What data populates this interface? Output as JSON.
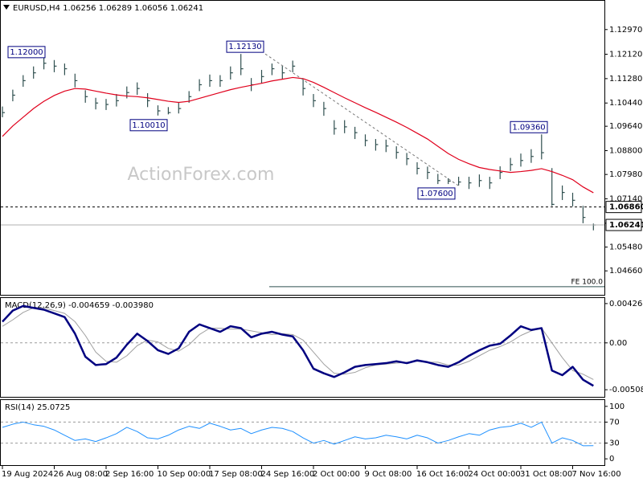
{
  "chart_data": [
    {
      "type": "ohlc",
      "title": "EURUSD,H4  1.06256 1.06289 1.06056 1.06241",
      "watermark": "ActionForex.com",
      "categories": [
        "19 Aug 2024",
        null,
        null,
        null,
        null,
        "26 Aug 08:00",
        null,
        null,
        null,
        null,
        "2 Sep 16:00",
        null,
        null,
        null,
        null,
        "10 Sep 00:00",
        null,
        null,
        null,
        null,
        "17 Sep 08:00",
        null,
        null,
        null,
        null,
        "24 Sep 16:00",
        null,
        null,
        null,
        null,
        "2 Oct 00:00",
        null,
        null,
        null,
        null,
        "9 Oct 08:00",
        null,
        null,
        null,
        null,
        "16 Oct 16:00",
        null,
        null,
        null,
        null,
        "24 Oct 00:00",
        null,
        null,
        null,
        null,
        "31 Oct 08:00",
        null,
        null,
        null,
        null,
        "7 Nov 16:00",
        null,
        null
      ],
      "high": [
        1.1032,
        1.109,
        1.114,
        1.117,
        1.12,
        1.1192,
        1.118,
        1.1145,
        1.1088,
        1.1062,
        1.1058,
        1.1075,
        1.1101,
        1.1115,
        1.1078,
        1.1036,
        1.103,
        1.1046,
        1.1085,
        1.1126,
        1.1142,
        1.114,
        1.117,
        1.1213,
        1.113,
        1.1158,
        1.118,
        1.1172,
        1.119,
        1.1125,
        1.1075,
        1.1048,
        1.0985,
        1.0985,
        1.0962,
        1.0936,
        1.092,
        1.0918,
        1.0895,
        1.0872,
        1.084,
        1.0825,
        1.08,
        1.0785,
        1.079,
        1.079,
        1.0798,
        1.079,
        1.0826,
        1.0855,
        1.087,
        1.0885,
        1.0936,
        1.082,
        1.076,
        1.0735,
        1.069,
        1.06289
      ],
      "low": [
        1.0995,
        1.105,
        1.11,
        1.1128,
        1.116,
        1.115,
        1.114,
        1.1098,
        1.1045,
        1.1022,
        1.102,
        1.1032,
        1.106,
        1.1072,
        1.103,
        1.1001,
        1.1005,
        1.1008,
        1.1045,
        1.1085,
        1.11,
        1.11,
        1.1125,
        1.114,
        1.1085,
        1.1112,
        1.114,
        1.1125,
        1.115,
        1.107,
        1.103,
        1.1,
        1.0935,
        1.094,
        1.092,
        1.0895,
        1.088,
        1.0875,
        1.0852,
        1.083,
        1.0798,
        1.0782,
        1.0765,
        1.0765,
        1.076,
        1.0748,
        1.0755,
        1.0748,
        1.0782,
        1.081,
        1.0825,
        1.0838,
        1.085,
        1.069,
        1.071,
        1.0688,
        1.063,
        1.06056
      ],
      "close": [
        1.1011,
        1.1071,
        1.1121,
        1.1148,
        1.1181,
        1.1171,
        1.1162,
        1.1121,
        1.1066,
        1.1044,
        1.1039,
        1.1052,
        1.108,
        1.1094,
        1.1052,
        1.1017,
        1.1011,
        1.1025,
        1.1066,
        1.1107,
        1.1121,
        1.1121,
        1.1148,
        1.1162,
        1.1107,
        1.1135,
        1.1162,
        1.1148,
        1.1171,
        1.1094,
        1.1052,
        1.1025,
        1.0956,
        1.0962,
        1.0942,
        1.0915,
        1.0901,
        1.0896,
        1.0874,
        1.0852,
        1.0819,
        1.0805,
        1.0777,
        1.0775,
        1.0772,
        1.0769,
        1.0777,
        1.0769,
        1.0805,
        1.0832,
        1.0846,
        1.086,
        1.0873,
        1.0695,
        1.0736,
        1.0709,
        1.065,
        1.06241
      ],
      "color": "#2f4f4f",
      "ma": {
        "color": "#e0001c",
        "values": [
          1.0929,
          1.0965,
          1.0995,
          1.1025,
          1.105,
          1.107,
          1.1085,
          1.1094,
          1.1092,
          1.1085,
          1.1078,
          1.1072,
          1.1068,
          1.1066,
          1.1062,
          1.1056,
          1.105,
          1.1046,
          1.105,
          1.106,
          1.107,
          1.108,
          1.109,
          1.1098,
          1.1105,
          1.1112,
          1.112,
          1.1126,
          1.1132,
          1.1128,
          1.1115,
          1.1098,
          1.108,
          1.1062,
          1.1045,
          1.1028,
          1.1012,
          1.0995,
          1.0978,
          1.096,
          1.094,
          1.092,
          1.0895,
          1.087,
          1.085,
          1.0835,
          1.0822,
          1.0815,
          1.081,
          1.0805,
          1.0808,
          1.0812,
          1.0818,
          1.0808,
          1.0795,
          1.078,
          1.0755,
          1.0735
        ]
      },
      "annotations": [
        {
          "value": 1.12,
          "label": "1.12000"
        },
        {
          "value": 1.1213,
          "label": "1.12130"
        },
        {
          "value": 1.1001,
          "label": "1.10010"
        },
        {
          "value": 1.076,
          "label": "1.07600"
        },
        {
          "value": 1.0936,
          "label": "1.09360"
        }
      ],
      "levels": [
        {
          "value": 1.0686,
          "label": "1.06860",
          "style": "dashed"
        },
        {
          "value": 1.06241,
          "label": "1.06241",
          "style": "solid"
        }
      ],
      "fe_level": {
        "value": 1.04115,
        "label": "FE 100.0"
      },
      "ylim": [
        1.03835,
        1.1396
      ],
      "yticks": [
        {
          "value": 1.1297,
          "label": "1.12970"
        },
        {
          "value": 1.1212,
          "label": "1.12120"
        },
        {
          "value": 1.1128,
          "label": "1.11280"
        },
        {
          "value": 1.1044,
          "label": "1.10440"
        },
        {
          "value": 1.0964,
          "label": "1.09640"
        },
        {
          "value": 1.088,
          "label": "1.08800"
        },
        {
          "value": 1.0798,
          "label": "1.07980"
        },
        {
          "value": 1.0714,
          "label": "1.07140"
        },
        {
          "value": 1.063,
          "label": "1.06300"
        },
        {
          "value": 1.0548,
          "label": "1.05480"
        },
        {
          "value": 1.0466,
          "label": "1.04660"
        }
      ]
    },
    {
      "type": "line",
      "title": "MACD(12,26,9) -0.004659 -0.003980",
      "series": [
        {
          "name": "MACD",
          "color": "#000080",
          "width": 2.5,
          "values": [
            0.0023,
            0.0035,
            0.004,
            0.0038,
            0.0036,
            0.0032,
            0.0028,
            0.001,
            -0.0015,
            -0.0024,
            -0.0023,
            -0.0016,
            -0.0002,
            0.001,
            0.0002,
            -0.0008,
            -0.0012,
            -0.0006,
            0.0012,
            0.002,
            0.0016,
            0.0012,
            0.0018,
            0.0016,
            0.0006,
            0.001,
            0.0012,
            0.0009,
            0.0007,
            -0.0008,
            -0.0028,
            -0.0033,
            -0.0037,
            -0.0032,
            -0.0026,
            -0.0024,
            -0.0023,
            -0.0022,
            -0.002,
            -0.0022,
            -0.0019,
            -0.0021,
            -0.0024,
            -0.0026,
            -0.0021,
            -0.0014,
            -0.0008,
            -0.0003,
            -0.0001,
            0.0008,
            0.0018,
            0.0014,
            0.0016,
            -0.003,
            -0.0035,
            -0.0026,
            -0.004,
            -0.004659
          ]
        },
        {
          "name": "Signal",
          "color": "#a0a0a0",
          "width": 1,
          "values": [
            0.0018,
            0.0025,
            0.0033,
            0.0038,
            0.0038,
            0.0035,
            0.0032,
            0.0023,
            0.0008,
            -0.001,
            -0.002,
            -0.0021,
            -0.0014,
            -0.0003,
            0.0003,
            0.0001,
            -0.0006,
            -0.0009,
            -0.0002,
            0.0009,
            0.0016,
            0.0016,
            0.0015,
            0.0015,
            0.0013,
            0.0011,
            0.0009,
            0.001,
            0.0009,
            0.0003,
            -0.001,
            -0.0023,
            -0.0033,
            -0.0034,
            -0.0032,
            -0.0027,
            -0.0024,
            -0.0023,
            -0.0022,
            -0.0021,
            -0.002,
            -0.0021,
            -0.0021,
            -0.0024,
            -0.0024,
            -0.002,
            -0.0014,
            -0.0008,
            -0.0004,
            0.0001,
            0.0008,
            0.0013,
            0.0016,
            0.0,
            -0.0016,
            -0.003,
            -0.0034,
            -0.00398
          ]
        }
      ],
      "ylim": [
        -0.005856,
        0.004864
      ],
      "yticks": [
        0.004263,
        {
          "value": 0,
          "label": "0.00"
        },
        -0.005084
      ],
      "grid_values": [
        0
      ]
    },
    {
      "type": "line",
      "title": "RSI(14) 25.0725",
      "series": [
        {
          "name": "RSI",
          "color": "#1e90ff",
          "width": 1,
          "values": [
            60,
            66,
            70,
            65,
            62,
            55,
            45,
            35,
            38,
            33,
            40,
            48,
            60,
            52,
            40,
            38,
            45,
            55,
            62,
            58,
            68,
            62,
            55,
            58,
            48,
            55,
            60,
            58,
            52,
            40,
            30,
            35,
            28,
            35,
            42,
            38,
            40,
            45,
            42,
            38,
            45,
            40,
            30,
            35,
            42,
            48,
            45,
            55,
            60,
            62,
            68,
            60,
            70,
            30,
            40,
            35,
            25,
            25.0725
          ]
        }
      ],
      "ylim": [
        -12,
        112
      ],
      "yticks": [
        100,
        70,
        30,
        0
      ],
      "grid_values": [
        70,
        30
      ]
    }
  ]
}
